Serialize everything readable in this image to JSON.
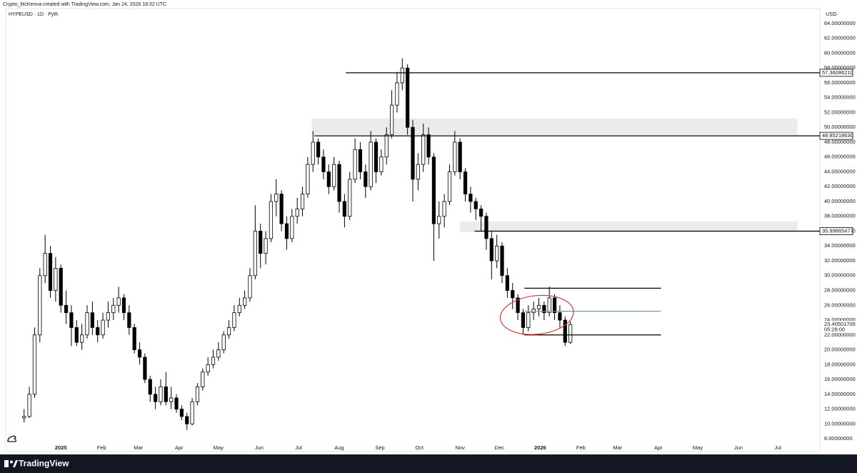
{
  "header": {
    "caption": "Crypto_McKenna created with TradingView.com, Jan 24, 2026 18:32 UTC"
  },
  "footer": {
    "brand": "TradingView"
  },
  "chart_data": {
    "type": "candlestick",
    "symbol_label": "HYPEUSD · 1D · Pyth",
    "currency": "USD",
    "up_color": "#ffffff",
    "down_color": "#000000",
    "outline_color": "#000000",
    "x": [
      -28,
      -24,
      -20,
      -16,
      -12,
      -8,
      -4,
      0,
      4,
      8,
      12,
      16,
      20,
      24,
      28,
      32,
      36,
      40,
      44,
      48,
      52,
      56,
      60,
      64,
      68,
      72,
      76,
      80,
      84,
      88,
      92,
      96,
      100,
      104,
      108,
      112,
      116,
      120,
      124,
      128,
      132,
      136,
      140,
      144,
      148,
      152,
      156,
      160,
      164,
      168,
      172,
      176,
      180,
      184,
      188,
      192,
      196,
      200,
      204,
      208,
      212,
      216,
      220,
      224,
      228,
      232,
      236,
      240,
      244,
      248,
      252,
      256,
      260,
      264,
      268,
      272,
      276,
      280,
      284,
      288,
      292,
      296,
      300,
      304,
      308,
      312,
      316,
      320,
      324,
      328,
      332,
      336,
      340,
      344,
      348,
      352,
      356,
      360,
      364,
      368,
      372,
      376,
      380,
      384,
      388
    ],
    "open": [
      10.8,
      11,
      14,
      22,
      30,
      33,
      28,
      31,
      26,
      25,
      23,
      21,
      22,
      25,
      23,
      22,
      24,
      25,
      26,
      27,
      25,
      23,
      20,
      19,
      16,
      14,
      13,
      15,
      13,
      13.5,
      12,
      11,
      10,
      13,
      15,
      17,
      18,
      19,
      20,
      22,
      23,
      25,
      26,
      27,
      30,
      36,
      33,
      35,
      40,
      41,
      37,
      35,
      38,
      39,
      41,
      45,
      48,
      46,
      44,
      42,
      45,
      40,
      38,
      43,
      47,
      44,
      42,
      48,
      44,
      46,
      49,
      53,
      56,
      58,
      50,
      43,
      45,
      49,
      46,
      37,
      38,
      40,
      44,
      48,
      44,
      41,
      40,
      39,
      38,
      35,
      32,
      34,
      30,
      28,
      27,
      25,
      23,
      25,
      25.5,
      26,
      25,
      27,
      25,
      24,
      21
    ],
    "high": [
      12,
      15,
      23,
      31,
      35.5,
      34,
      32.5,
      31.5,
      28,
      26,
      24,
      23.5,
      26,
      26.5,
      24,
      25,
      26.5,
      27,
      28.5,
      27.5,
      26,
      23.5,
      21,
      19.5,
      16.5,
      15,
      16,
      17,
      15,
      14,
      12.5,
      11.5,
      13.5,
      15.5,
      17.5,
      19,
      20,
      21,
      22.5,
      24,
      26,
      27,
      28,
      31,
      39.5,
      37,
      36,
      41,
      43,
      41.5,
      38,
      39,
      40.5,
      42,
      46,
      49.5,
      48.5,
      47,
      45,
      46,
      45.5,
      41,
      44,
      48.5,
      48,
      45,
      49.5,
      48.5,
      47,
      50,
      55,
      57.5,
      59.3,
      58.5,
      51,
      46.5,
      50.5,
      50,
      46.5,
      40,
      41,
      45,
      49.5,
      48.5,
      44.5,
      42,
      40.5,
      39.5,
      38.5,
      36,
      35.5,
      34.5,
      31,
      29,
      27.5,
      25.5,
      26,
      26.5,
      27,
      26.5,
      28.5,
      27.5,
      26,
      24.5,
      23.8
    ],
    "low": [
      10.2,
      10.8,
      13.5,
      21,
      29,
      27,
      26.5,
      25,
      23.5,
      20.5,
      20.5,
      20,
      21.5,
      22,
      21,
      21.5,
      23,
      24,
      25,
      24,
      22,
      19.5,
      18,
      15.5,
      13,
      12,
      12.5,
      12.5,
      12,
      11.5,
      10.5,
      9.2,
      9.8,
      12.5,
      14.5,
      16.5,
      17.5,
      18.5,
      19.5,
      21.5,
      22.5,
      24.5,
      25.5,
      26.5,
      29.5,
      31,
      31.5,
      34.5,
      38,
      36,
      33.5,
      34.5,
      37,
      38,
      40.5,
      44,
      45,
      43,
      41,
      41.5,
      38.5,
      36.5,
      37.5,
      42.5,
      43,
      40.5,
      41.5,
      42.5,
      43.5,
      45,
      48.5,
      52,
      55,
      49,
      40,
      41.5,
      44,
      45,
      32,
      35,
      36.5,
      39.5,
      43.5,
      43,
      40,
      38.5,
      37.5,
      36,
      33.5,
      29.5,
      31,
      29,
      27,
      25.5,
      24,
      22,
      22.5,
      24,
      24.5,
      24,
      24.5,
      24,
      23,
      20.5,
      20.8
    ],
    "close": [
      11,
      14,
      22,
      30,
      33,
      28,
      31,
      26,
      25,
      23,
      21,
      22,
      25,
      23,
      22,
      24,
      25,
      26,
      27,
      25,
      23,
      20,
      19,
      16,
      14,
      13,
      15,
      13,
      13.5,
      12,
      11,
      10,
      13,
      15,
      17,
      18,
      19,
      20,
      22,
      23,
      25,
      26,
      27,
      30,
      36,
      33,
      35,
      40,
      41,
      37,
      35,
      38,
      39,
      41,
      45,
      48,
      46,
      44,
      42,
      45,
      40,
      38,
      43,
      47,
      44,
      42,
      48,
      44,
      46,
      49,
      53,
      56,
      58,
      50,
      43,
      45,
      49,
      46,
      37,
      38,
      40,
      44,
      48,
      44,
      41,
      40,
      39,
      38,
      35,
      32,
      34,
      30,
      28,
      27,
      25,
      23,
      25,
      25.5,
      26,
      25,
      27,
      25,
      24,
      21,
      23.40501705
    ],
    "countdown": "05:28:00",
    "xlim": [
      -42,
      578
    ],
    "xticks": [
      {
        "value": 0,
        "label": "2025"
      },
      {
        "value": 31,
        "label": "Feb"
      },
      {
        "value": 59,
        "label": "Mar"
      },
      {
        "value": 90,
        "label": "Apr"
      },
      {
        "value": 120,
        "label": "May"
      },
      {
        "value": 151,
        "label": "Jun"
      },
      {
        "value": 181,
        "label": "Jul"
      },
      {
        "value": 212,
        "label": "Aug"
      },
      {
        "value": 243,
        "label": "Sep"
      },
      {
        "value": 273,
        "label": "Oct"
      },
      {
        "value": 304,
        "label": "Nov"
      },
      {
        "value": 334,
        "label": "Dec"
      },
      {
        "value": 365,
        "label": "2026"
      },
      {
        "value": 396,
        "label": "Feb"
      },
      {
        "value": 424,
        "label": "Mar"
      },
      {
        "value": 455,
        "label": "Apr"
      },
      {
        "value": 485,
        "label": "May"
      },
      {
        "value": 516,
        "label": "Jun"
      },
      {
        "value": 546,
        "label": "Jul"
      }
    ],
    "ylim": [
      6.27,
      66.02
    ],
    "yticks": [
      {
        "value": 8,
        "label": "8.00000000"
      },
      {
        "value": 10,
        "label": "10.00000000"
      },
      {
        "value": 12,
        "label": "12.00000000"
      },
      {
        "value": 14,
        "label": "14.00000000"
      },
      {
        "value": 16,
        "label": "16.00000000"
      },
      {
        "value": 18,
        "label": "18.00000000"
      },
      {
        "value": 20,
        "label": "20.00000000"
      },
      {
        "value": 22,
        "label": "22.00000000"
      },
      {
        "value": 24,
        "label": "24.00000000"
      },
      {
        "value": 26,
        "label": "26.00000000"
      },
      {
        "value": 28,
        "label": "28.00000000"
      },
      {
        "value": 30,
        "label": "30.00000000"
      },
      {
        "value": 32,
        "label": "32.00000000"
      },
      {
        "value": 34,
        "label": "34.00000000"
      },
      {
        "value": 36,
        "label": "36.00000000"
      },
      {
        "value": 38,
        "label": "38.00000000"
      },
      {
        "value": 40,
        "label": "40.00000000"
      },
      {
        "value": 42,
        "label": "42.00000000"
      },
      {
        "value": 44,
        "label": "44.00000000"
      },
      {
        "value": 46,
        "label": "46.00000000"
      },
      {
        "value": 48,
        "label": "48.00000000"
      },
      {
        "value": 50,
        "label": "50.00000000"
      },
      {
        "value": 52,
        "label": "52.00000000"
      },
      {
        "value": 54,
        "label": "54.00000000"
      },
      {
        "value": 56,
        "label": "56.00000000"
      },
      {
        "value": 58,
        "label": "58.00000000"
      },
      {
        "value": 60,
        "label": "60.00000000"
      },
      {
        "value": 62,
        "label": "62.00000000"
      },
      {
        "value": 64,
        "label": "64.00000000"
      }
    ],
    "zones": [
      {
        "low": 49,
        "high": 51.2,
        "x_start": 191,
        "x_end": 561,
        "color": "#ebebeb"
      },
      {
        "low": 35.9,
        "high": 37.3,
        "x_start": 304,
        "x_end": 561,
        "color": "#ebebeb"
      }
    ],
    "price_lines": [
      {
        "value": 57.3608621,
        "label": "57.36086210",
        "x_start": 217,
        "color": "#000000"
      },
      {
        "value": 48.8521863,
        "label": "48.85218630",
        "x_start": 193,
        "color": "#000000"
      },
      {
        "value": 35.99865477,
        "label": "35.99865477",
        "x_start": 315,
        "color": "#000000"
      }
    ],
    "segments": [
      {
        "value": 28.3,
        "x_start": 353,
        "x_end": 457,
        "color": "#000000"
      },
      {
        "value": 25.2,
        "x_start": 353,
        "x_end": 457,
        "color": "#4a9fb3"
      },
      {
        "value": 22,
        "x_start": 353,
        "x_end": 457,
        "color": "#000000"
      }
    ],
    "ellipse": {
      "center_x": 362.5,
      "center_y": 24.7,
      "radius_x": 28,
      "radius_y": 2.6,
      "color": "#d63a3a"
    }
  }
}
